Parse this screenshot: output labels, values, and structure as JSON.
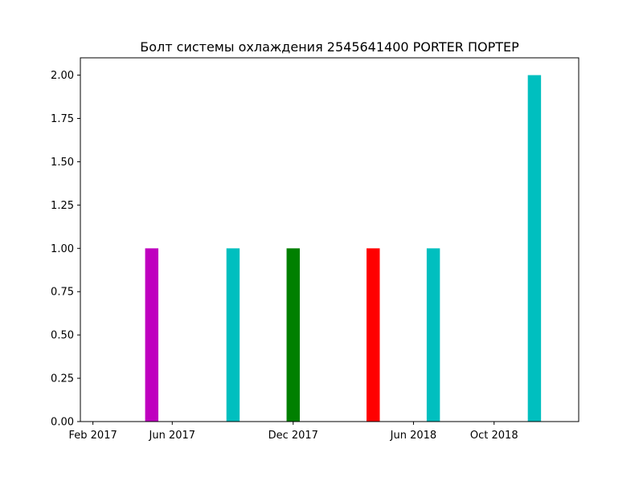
{
  "chart_data": {
    "type": "bar",
    "title": "Болт системы охлаждения 2545641400 PORTER ПОРТЕР",
    "xlabel": "",
    "ylabel": "",
    "x_axis_type": "date",
    "xlim": [
      "2017-01-13",
      "2019-02-06"
    ],
    "ylim": [
      0,
      2.1
    ],
    "grid": false,
    "legend": "none",
    "x_ticks": [
      {
        "date": "2017-02-01",
        "label": "Feb 2017"
      },
      {
        "date": "2017-06-01",
        "label": "Jun 2017"
      },
      {
        "date": "2017-12-01",
        "label": "Dec 2017"
      },
      {
        "date": "2018-06-01",
        "label": "Jun 2018"
      },
      {
        "date": "2018-10-01",
        "label": "Oct 2018"
      }
    ],
    "y_ticks": [
      {
        "value": 0.0,
        "label": "0.00"
      },
      {
        "value": 0.25,
        "label": "0.25"
      },
      {
        "value": 0.5,
        "label": "0.50"
      },
      {
        "value": 0.75,
        "label": "0.75"
      },
      {
        "value": 1.0,
        "label": "1.00"
      },
      {
        "value": 1.25,
        "label": "1.25"
      },
      {
        "value": 1.5,
        "label": "1.50"
      },
      {
        "value": 1.75,
        "label": "1.75"
      },
      {
        "value": 2.0,
        "label": "2.00"
      }
    ],
    "bars": [
      {
        "date": "2017-05-01",
        "value": 1,
        "color": "#bf00bf"
      },
      {
        "date": "2017-09-01",
        "value": 1,
        "color": "#00bfbf"
      },
      {
        "date": "2017-12-01",
        "value": 1,
        "color": "#008000"
      },
      {
        "date": "2018-04-01",
        "value": 1,
        "color": "#ff0000"
      },
      {
        "date": "2018-07-01",
        "value": 1,
        "color": "#00bfbf"
      },
      {
        "date": "2018-12-01",
        "value": 2,
        "color": "#00bfbf"
      }
    ]
  }
}
